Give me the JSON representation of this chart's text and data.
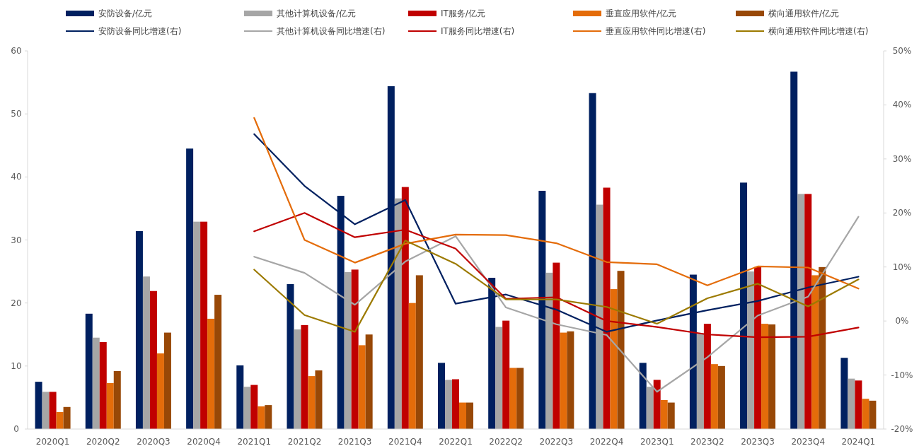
{
  "chart_data": {
    "type": "bar",
    "categories": [
      "2020Q1",
      "2020Q2",
      "2020Q3",
      "2020Q4",
      "2021Q1",
      "2021Q2",
      "2021Q3",
      "2021Q4",
      "2022Q1",
      "2022Q2",
      "2022Q3",
      "2022Q4",
      "2023Q1",
      "2023Q2",
      "2023Q3",
      "2023Q4",
      "2024Q1"
    ],
    "series": [
      {
        "name": "安防设备/亿元",
        "color": "#002060",
        "values": [
          7.5,
          18.3,
          31.4,
          44.5,
          10.1,
          23.0,
          37.0,
          54.4,
          10.5,
          24.0,
          37.8,
          53.3,
          10.5,
          24.5,
          39.1,
          56.7,
          11.3
        ]
      },
      {
        "name": "其他计算机设备/亿元",
        "color": "#a6a6a6",
        "values": [
          5.9,
          14.5,
          24.2,
          32.9,
          6.7,
          15.8,
          24.9,
          36.6,
          7.8,
          16.2,
          24.8,
          35.6,
          6.7,
          15.1,
          25.0,
          37.3,
          8.0
        ]
      },
      {
        "name": "IT服务/亿元",
        "color": "#c00000",
        "values": [
          5.9,
          13.8,
          21.9,
          32.9,
          7.0,
          16.5,
          25.3,
          38.4,
          7.9,
          17.2,
          26.4,
          38.3,
          7.8,
          16.7,
          25.7,
          37.3,
          7.7
        ]
      },
      {
        "name": "垂直应用软件/亿元",
        "color": "#e46c0a",
        "values": [
          2.7,
          7.3,
          12.0,
          17.5,
          3.6,
          8.4,
          13.3,
          20.0,
          4.2,
          9.7,
          15.3,
          22.2,
          4.6,
          10.3,
          16.7,
          24.4,
          4.8
        ]
      },
      {
        "name": "横向通用软件/亿元",
        "color": "#984807",
        "values": [
          3.5,
          9.2,
          15.3,
          21.3,
          3.8,
          9.3,
          15.0,
          24.4,
          4.2,
          9.7,
          15.5,
          25.1,
          4.2,
          10.0,
          16.6,
          25.7,
          4.5
        ]
      },
      {
        "name": "安防设备同比增速(右)",
        "type": "line",
        "axis": "y2",
        "color": "#002060",
        "values": [
          null,
          null,
          null,
          null,
          34.6,
          25.0,
          17.9,
          22.4,
          3.2,
          4.9,
          2.1,
          -2.0,
          0.1,
          2.0,
          3.7,
          6.2,
          8.2
        ]
      },
      {
        "name": "其他计算机设备同比增速(右)",
        "type": "line",
        "axis": "y2",
        "color": "#a6a6a6",
        "values": [
          null,
          null,
          null,
          null,
          11.9,
          8.9,
          3.0,
          11.0,
          15.7,
          2.5,
          -0.6,
          -2.6,
          -13.1,
          -6.7,
          1.0,
          4.5,
          19.3
        ]
      },
      {
        "name": "IT服务同比增速(右)",
        "type": "line",
        "axis": "y2",
        "color": "#c00000",
        "values": [
          null,
          null,
          null,
          null,
          16.6,
          20.0,
          15.5,
          16.9,
          13.4,
          4.1,
          4.4,
          0.0,
          -1.1,
          -2.5,
          -3.0,
          -2.9,
          -1.2
        ]
      },
      {
        "name": "垂直应用软件同比增速(右)",
        "type": "line",
        "axis": "y2",
        "color": "#e46c0a",
        "values": [
          null,
          null,
          null,
          null,
          37.6,
          15.0,
          10.8,
          14.3,
          16.0,
          15.9,
          14.4,
          10.9,
          10.5,
          6.6,
          10.1,
          9.9,
          6.0
        ]
      },
      {
        "name": "横向通用软件同比增速(右)",
        "type": "line",
        "axis": "y2",
        "color": "#9c7a00",
        "values": [
          null,
          null,
          null,
          null,
          9.5,
          1.1,
          -2.0,
          14.9,
          10.6,
          4.0,
          4.0,
          2.6,
          -0.5,
          4.2,
          6.9,
          2.7,
          7.7
        ]
      }
    ],
    "ylim": [
      0,
      60
    ],
    "yticks": [
      0,
      10,
      20,
      30,
      40,
      50,
      60
    ],
    "y2lim": [
      -20,
      50
    ],
    "y2ticks": [
      {
        "value": -20,
        "label": "-20%"
      },
      {
        "value": -10,
        "label": "-10%"
      },
      {
        "value": 0,
        "label": "0%"
      },
      {
        "value": 10,
        "label": "10%"
      },
      {
        "value": 20,
        "label": "20%"
      },
      {
        "value": 30,
        "label": "30%"
      },
      {
        "value": 40,
        "label": "40%"
      },
      {
        "value": 50,
        "label": "50%"
      }
    ],
    "legend": "top",
    "grid": false
  }
}
